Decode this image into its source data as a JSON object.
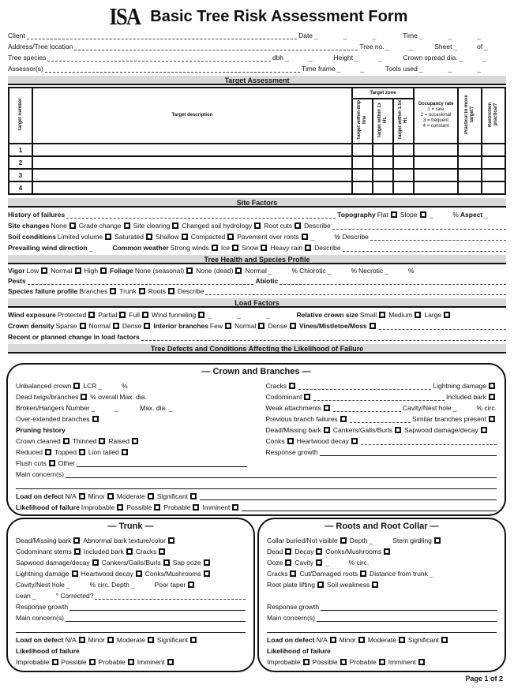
{
  "logo": "ISA",
  "title": "Basic Tree Risk Assessment Form",
  "header_rows": [
    [
      "Client",
      "*",
      "Date",
      "___",
      "Time",
      "___"
    ],
    [
      "Address/Tree location",
      "*",
      "Tree no.",
      "__",
      "Sheet",
      "_",
      "of",
      "_"
    ],
    [
      "Tree species",
      "*",
      "dbh",
      "__",
      "Height",
      "__",
      "Crown spread dia.",
      "__"
    ],
    [
      "Assessor(s)",
      "*",
      "Time frame",
      "__",
      "Tools used",
      "___"
    ]
  ],
  "sections": {
    "target": "Target Assessment",
    "site": "Site Factors",
    "health": "Tree Health and Species Profile",
    "load": "Load Factors",
    "defects": "Tree Defects and Conditions  Affecting the Likelihood of Failure"
  },
  "target_table": {
    "col_number": "Target number",
    "col_description": "Target description",
    "col_zone": "Target zone",
    "zone_subcols": [
      "Target within drip line",
      "Target within 1x Ht.",
      "Target within 1.5x Ht."
    ],
    "col_occupancy": "Occupancy rate",
    "occupancy_legend": [
      "1 = rare",
      "2 = occasional",
      "3 = frequent",
      "4 = constant"
    ],
    "col_move": "Practical to move target?",
    "col_restrict": "Restriction practical?",
    "rows": [
      "1",
      "2",
      "3",
      "4"
    ]
  },
  "site_rows": [
    [
      "**History of failures",
      "*",
      "**Topography",
      "Flat",
      "[]",
      "Slope",
      "[]",
      "_",
      "%",
      "**Aspect",
      "_"
    ],
    [
      "**Site changes",
      "None",
      "[]",
      "Grade change",
      "[]",
      "Site clearing",
      "[]",
      "Changed soil hydrology",
      "[]",
      "Root cuts",
      "[]",
      "Describe",
      "*"
    ],
    [
      "**Soil conditions",
      "Limited volume",
      "[]",
      "Saturated",
      "[]",
      "Shallow",
      "[]",
      "Compacted",
      "[]",
      "Pavement over roots",
      "[]",
      "_",
      "% Describe",
      "*"
    ],
    [
      "**Prevailing wind direction",
      "_",
      "**Common weather",
      "Strong winds",
      "[]",
      "Ice",
      "[]",
      "Snow",
      "[]",
      "Heavy rain",
      "[]",
      "Describe",
      "*"
    ]
  ],
  "health_rows": [
    [
      "**Vigor",
      "Low",
      "[]",
      "Normal",
      "[]",
      "High",
      "[]",
      "**Foliage",
      "None (seasonal)",
      "[]",
      "None (dead)",
      "[]",
      "Normal",
      "_",
      "%",
      "Chlorotic",
      "_",
      "%",
      "Necrotic",
      "_",
      "%"
    ],
    [
      "**Pests",
      "*",
      "**Abiotic",
      "*"
    ],
    [
      "**Species failure profile",
      "Branches",
      "[]",
      "Trunk",
      "[]",
      "Roots",
      "[]",
      "Describe",
      "*"
    ]
  ],
  "load_rows": [
    [
      "**Wind exposure",
      "Protected",
      "[]",
      "Partial",
      "[]",
      "Full",
      "[]",
      "Wind funneling",
      "[]",
      "___",
      "**Relative crown size",
      "Small",
      "[]",
      "Medium",
      "[]",
      "Large",
      "[]"
    ],
    [
      "**Crown density",
      "Sparse",
      "[]",
      "Normal",
      "[]",
      "Dense",
      "[]",
      "**Interior branches",
      "Few",
      "[]",
      "Normal",
      "[]",
      "Dense",
      "[]",
      "**Vines/Mistletoe/Moss",
      "[]",
      "*"
    ],
    [
      "**Recent or planned change in load factors",
      "*"
    ]
  ],
  "crown": {
    "title": "— Crown and Branches —",
    "left": [
      [
        "Unbalanced crown",
        "[]",
        "LCR",
        "_",
        "%"
      ],
      [
        "Dead twigs/branches",
        "[]",
        "% overall",
        "Max. dia."
      ],
      [
        "Broken/Hangers",
        "Number",
        "__",
        "Max. dia.",
        "_"
      ],
      [
        "Over-extended branches",
        "[]"
      ],
      [
        "**Pruning history"
      ],
      [
        "Crown cleaned",
        "[]",
        "Thinned",
        "[]",
        "Raised",
        "[]"
      ],
      [
        "Reduced",
        "[]",
        "Topped",
        "[]",
        "Lion tailed",
        "[]"
      ],
      [
        "Flush cuts",
        "[]",
        "Other",
        "$"
      ]
    ],
    "right": [
      [
        "Cracks",
        "[]",
        "*",
        "Lightning damage",
        "[]"
      ],
      [
        "Codominant",
        "[]",
        "*",
        "Included bark",
        "[]"
      ],
      [
        "Weak attachments",
        "[]",
        "*",
        "Cavity/Nest hole",
        "_",
        "% circ."
      ],
      [
        "Previous branch failures",
        "[]",
        "*",
        "Similar branches present",
        "[]"
      ],
      [
        "Dead/Missing bark",
        "[]",
        "Cankers/Galls/Burls",
        "[]",
        "Sapwood damage/decay",
        "[]"
      ],
      [
        "Conks",
        "[]",
        "Heartwood decay",
        "[]",
        "*"
      ],
      [
        "Response growth",
        "$"
      ]
    ],
    "bottom": [
      [
        "Main concern(s)",
        "$"
      ],
      [
        "$"
      ],
      [
        "**Load on defect",
        "N/A",
        "[]",
        "Minor",
        "[]",
        "Moderate",
        "[]",
        "Significant",
        "[]",
        "$"
      ],
      [
        "**Likelihood of failure",
        "Improbable",
        "[]",
        "Possible",
        "[]",
        "Probable",
        "[]",
        "Imminent",
        "[]",
        "$"
      ]
    ]
  },
  "trunk": {
    "title": "— Trunk —",
    "rows": [
      [
        "Dead/Missing bark",
        "[]",
        "Abnormal bark texture/color",
        "[]"
      ],
      [
        "Codominant stems",
        "[]",
        "Included bark",
        "[]",
        "Cracks",
        "[]"
      ],
      [
        "Sapwood damage/decay",
        "[]",
        "Cankers/Galls/Burls",
        "[]",
        "Sap ooze",
        "[]"
      ],
      [
        "Lightning damage",
        "[]",
        "Heartwood decay",
        "[]",
        "Conks/Mushrooms",
        "[]"
      ],
      [
        "Cavity/Nest hole",
        "_",
        "% circ.",
        "Depth",
        "_",
        "Poor taper",
        "[]"
      ],
      [
        "Lean",
        "_",
        "° Corrected?",
        "*"
      ],
      [
        "Response growth",
        "$"
      ],
      [
        "Main concern(s)",
        "$"
      ],
      [
        "$"
      ],
      [
        "**Load on defect",
        "N/A",
        "[]",
        "Minor",
        "[]",
        "Moderate",
        "[]",
        "Significant",
        "[]"
      ],
      [
        "**Likelihood of failure"
      ],
      [
        "Improbable",
        "[]",
        "Possible",
        "[]",
        "Probable",
        "[]",
        "Imminent",
        "[]"
      ]
    ]
  },
  "roots": {
    "title": "— Roots and Root Collar —",
    "rows": [
      [
        "Collar buried/Not visible",
        "[]",
        "Depth",
        "_",
        "Stem girdling",
        "[]"
      ],
      [
        "Dead",
        "[]",
        "Decay",
        "[]",
        "Conks/Mushrooms",
        "[]"
      ],
      [
        "Ooze",
        "[]",
        "Cavity",
        "[]",
        "_",
        "% circ."
      ],
      [
        "Cracks",
        "[]",
        "Cut/Damaged roots",
        "[]",
        "Distance from trunk",
        "_"
      ],
      [
        "Root plate lifting",
        "[]",
        "Soil weakness",
        "[]"
      ],
      [],
      [
        "Response growth",
        "$"
      ],
      [
        "Main concern(s)",
        "$"
      ],
      [
        "$"
      ],
      [
        "**Load on defect",
        "N/A",
        "[]",
        "Minor",
        "[]",
        "Moderate",
        "[]",
        "Significant",
        "[]"
      ],
      [
        "**Likelihood of failure"
      ],
      [
        "Improbable",
        "[]",
        "Possible",
        "[]",
        "Probable",
        "[]",
        "Imminent",
        "[]"
      ]
    ]
  },
  "footer": "Page 1 of 2"
}
